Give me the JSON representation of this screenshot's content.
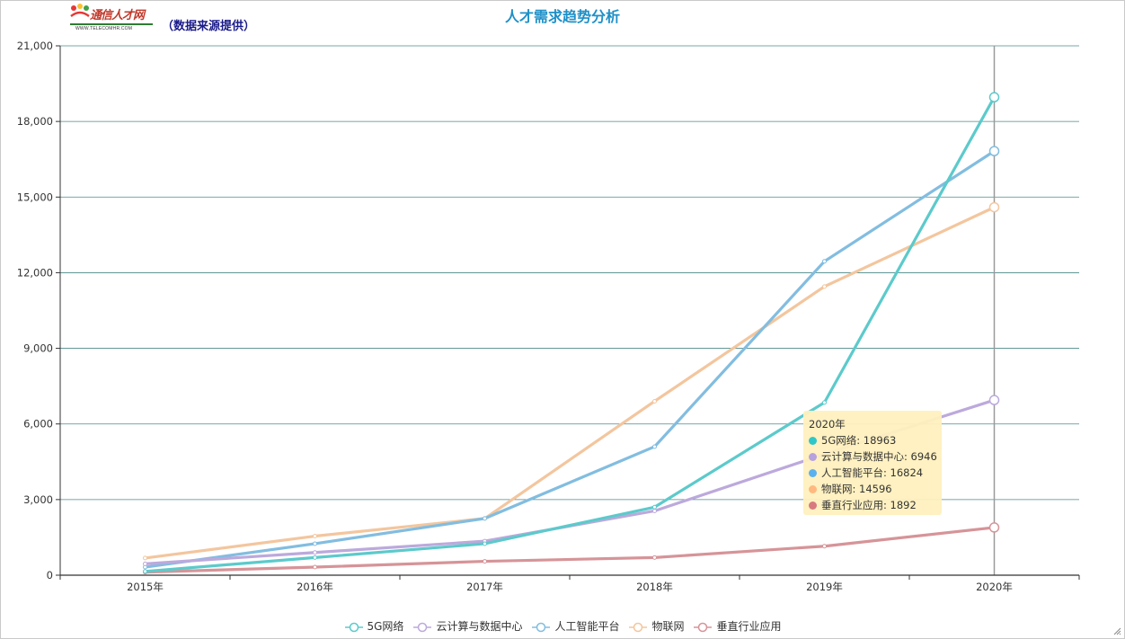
{
  "header": {
    "logo_cn": "通信人才网",
    "logo_en": "WWW.TELECOMHR.COM",
    "source_note": "（数据来源提供）"
  },
  "chart_data": {
    "type": "line",
    "title": "人才需求趋势分析",
    "categories": [
      "2015年",
      "2016年",
      "2017年",
      "2018年",
      "2019年",
      "2020年"
    ],
    "ylim": [
      0,
      21000
    ],
    "yticks": [
      0,
      3000,
      6000,
      9000,
      12000,
      15000,
      18000,
      21000
    ],
    "ytick_labels": [
      "0",
      "3,000",
      "6,000",
      "9,000",
      "12,000",
      "15,000",
      "18,000",
      "21,000"
    ],
    "grid": true,
    "legend_position": "bottom",
    "series": [
      {
        "name": "5G网络",
        "color": "#5ccacb",
        "values": [
          150,
          700,
          1250,
          2700,
          6850,
          18963
        ]
      },
      {
        "name": "云计算与数据中心",
        "color": "#bca9dc",
        "values": [
          450,
          900,
          1350,
          2550,
          4800,
          6946
        ]
      },
      {
        "name": "人工智能平台",
        "color": "#82bde0",
        "values": [
          320,
          1250,
          2250,
          5100,
          12450,
          16824
        ]
      },
      {
        "name": "物联网",
        "color": "#f3c69e",
        "values": [
          680,
          1550,
          2250,
          6900,
          11450,
          14596
        ]
      },
      {
        "name": "垂直行业应用",
        "color": "#d69498",
        "values": [
          120,
          320,
          550,
          700,
          1150,
          1892
        ]
      }
    ]
  },
  "tooltip": {
    "title": "2020年",
    "rows": [
      {
        "label": "5G网络: 18963",
        "color": "#2ec7c9"
      },
      {
        "label": "云计算与数据中心: 6946",
        "color": "#b6a2de"
      },
      {
        "label": "人工智能平台: 16824",
        "color": "#5ab1ef"
      },
      {
        "label": "物联网: 14596",
        "color": "#ffb980"
      },
      {
        "label": "垂直行业应用: 1892",
        "color": "#d87a80"
      }
    ]
  },
  "legend": {
    "items": [
      {
        "label": "5G网络",
        "color": "#5ccacb"
      },
      {
        "label": "云计算与数据中心",
        "color": "#bca9dc"
      },
      {
        "label": "人工智能平台",
        "color": "#82bde0"
      },
      {
        "label": "物联网",
        "color": "#f3c69e"
      },
      {
        "label": "垂直行业应用",
        "color": "#d69498"
      }
    ]
  }
}
